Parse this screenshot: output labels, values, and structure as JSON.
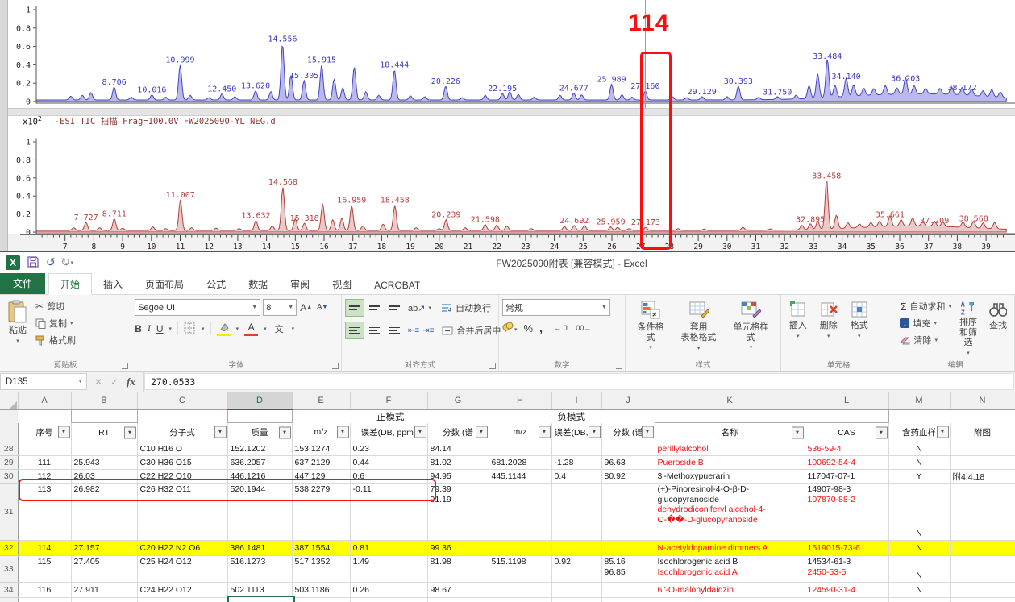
{
  "chart": {
    "scale_label": "x10",
    "scale_exp": "2",
    "panel2_title": "-ESI TIC 扫描 Frag=100.0V FW2025090-YL NEG.d",
    "annotation_label": "114",
    "y_ticks": [
      "1",
      "0.8",
      "0.6",
      "0.4",
      "0.2",
      "0"
    ],
    "x_ticks": [
      7,
      8,
      9,
      10,
      11,
      12,
      13,
      14,
      15,
      16,
      17,
      18,
      19,
      20,
      21,
      22,
      23,
      24,
      25,
      26,
      27,
      28,
      29,
      30,
      31,
      32,
      33,
      34,
      35,
      36,
      37,
      38,
      39
    ]
  },
  "chart_data": [
    {
      "type": "area",
      "name": "TIC trace upper (blue)",
      "xlabel": "acquisition time (min)",
      "xlim": [
        6,
        39.7
      ],
      "ylim": [
        0,
        1.05
      ],
      "labeled_peaks": [
        {
          "rt": 8.706,
          "h": 0.14,
          "label": "8.706"
        },
        {
          "rt": 10.016,
          "h": 0.055,
          "label": "10.016"
        },
        {
          "rt": 10.999,
          "h": 0.38,
          "label": "10.999"
        },
        {
          "rt": 12.45,
          "h": 0.065,
          "label": "12.450"
        },
        {
          "rt": 13.62,
          "h": 0.1,
          "label": "13.620"
        },
        {
          "rt": 14.556,
          "h": 0.61,
          "label": "14.556"
        },
        {
          "rt": 15.305,
          "h": 0.21,
          "label": "15.305"
        },
        {
          "rt": 15.915,
          "h": 0.38,
          "label": "15.915"
        },
        {
          "rt": 18.444,
          "h": 0.33,
          "label": "18.444"
        },
        {
          "rt": 20.226,
          "h": 0.15,
          "label": "20.226"
        },
        {
          "rt": 22.195,
          "h": 0.07,
          "label": "22.195"
        },
        {
          "rt": 24.677,
          "h": 0.075,
          "label": "24.677"
        },
        {
          "rt": 25.989,
          "h": 0.17,
          "label": "25.989"
        },
        {
          "rt": 27.16,
          "h": 0.095,
          "label": "27.160"
        },
        {
          "rt": 29.129,
          "h": 0.035,
          "label": "29.129"
        },
        {
          "rt": 30.393,
          "h": 0.15,
          "label": "30.393"
        },
        {
          "rt": 31.75,
          "h": 0.03,
          "label": "31.750"
        },
        {
          "rt": 33.484,
          "h": 0.42,
          "label": "33.484"
        },
        {
          "rt": 34.14,
          "h": 0.2,
          "label": "34.140"
        },
        {
          "rt": 36.203,
          "h": 0.18,
          "label": "36.203"
        },
        {
          "rt": 38.172,
          "h": 0.08,
          "label": "38.172"
        }
      ],
      "minor_peaks": [
        [
          7.2,
          0.04
        ],
        [
          7.6,
          0.05
        ],
        [
          7.9,
          0.08
        ],
        [
          9.3,
          0.03
        ],
        [
          10.5,
          0.03
        ],
        [
          11.35,
          0.05
        ],
        [
          12.0,
          0.025
        ],
        [
          12.9,
          0.035
        ],
        [
          14.15,
          0.09
        ],
        [
          14.85,
          0.27
        ],
        [
          16.35,
          0.23
        ],
        [
          16.65,
          0.13
        ],
        [
          17.05,
          0.36
        ],
        [
          17.45,
          0.09
        ],
        [
          17.9,
          0.05
        ],
        [
          19.0,
          0.045
        ],
        [
          19.5,
          0.035
        ],
        [
          20.8,
          0.025
        ],
        [
          21.6,
          0.05
        ],
        [
          22.45,
          0.09
        ],
        [
          22.75,
          0.06
        ],
        [
          23.3,
          0.03
        ],
        [
          24.2,
          0.05
        ],
        [
          24.95,
          0.055
        ],
        [
          26.35,
          0.055
        ],
        [
          26.7,
          0.03
        ],
        [
          28.1,
          0.035
        ],
        [
          28.6,
          0.025
        ],
        [
          30.0,
          0.035
        ],
        [
          31.1,
          0.025
        ],
        [
          32.4,
          0.04
        ],
        [
          32.85,
          0.14
        ],
        [
          33.15,
          0.26
        ],
        [
          33.75,
          0.13
        ],
        [
          34.4,
          0.12
        ],
        [
          34.75,
          0.08
        ],
        [
          35.1,
          0.07
        ],
        [
          35.5,
          0.1
        ],
        [
          35.9,
          0.07
        ],
        [
          36.5,
          0.09
        ],
        [
          36.9,
          0.06
        ],
        [
          37.4,
          0.06
        ],
        [
          37.8,
          0.08
        ],
        [
          38.5,
          0.07
        ],
        [
          38.9,
          0.06
        ],
        [
          39.2,
          0.08
        ],
        [
          39.5,
          0.06
        ],
        [
          35.5,
          0.05,
          2.5
        ],
        [
          38.0,
          0.04,
          2.0
        ]
      ]
    },
    {
      "type": "area",
      "name": "TIC trace lower (red)",
      "title": "-ESI TIC 扫描 Frag=100.0V FW2025090-YL NEG.d",
      "xlim": [
        6,
        39.7
      ],
      "ylim": [
        0,
        1.05
      ],
      "labeled_peaks": [
        {
          "rt": 7.727,
          "h": 0.09,
          "label": "7.727"
        },
        {
          "rt": 8.711,
          "h": 0.13,
          "label": "8.711"
        },
        {
          "rt": 11.007,
          "h": 0.34,
          "label": "11.007"
        },
        {
          "rt": 13.632,
          "h": 0.11,
          "label": "13.632"
        },
        {
          "rt": 14.568,
          "h": 0.48,
          "label": "14.568"
        },
        {
          "rt": 15.318,
          "h": 0.08,
          "label": "15.318"
        },
        {
          "rt": 16.959,
          "h": 0.28,
          "label": "16.959"
        },
        {
          "rt": 18.458,
          "h": 0.28,
          "label": "18.458"
        },
        {
          "rt": 20.239,
          "h": 0.12,
          "label": "20.239"
        },
        {
          "rt": 21.598,
          "h": 0.065,
          "label": "21.598"
        },
        {
          "rt": 24.692,
          "h": 0.055,
          "label": "24.692"
        },
        {
          "rt": 25.959,
          "h": 0.04,
          "label": "25.959"
        },
        {
          "rt": 27.173,
          "h": 0.035,
          "label": "27.173"
        },
        {
          "rt": 32.895,
          "h": 0.065,
          "label": "32.895"
        },
        {
          "rt": 33.458,
          "h": 0.55,
          "label": "33.458"
        },
        {
          "rt": 35.661,
          "h": 0.12,
          "label": "35.661"
        },
        {
          "rt": 37.209,
          "h": 0.055,
          "label": "37.209"
        },
        {
          "rt": 38.568,
          "h": 0.075,
          "label": "38.568"
        }
      ],
      "minor_peaks": [
        [
          7.3,
          0.03
        ],
        [
          8.2,
          0.03
        ],
        [
          9.0,
          0.025
        ],
        [
          10.05,
          0.04
        ],
        [
          10.5,
          0.02
        ],
        [
          11.4,
          0.03
        ],
        [
          12.25,
          0.025
        ],
        [
          13.05,
          0.02
        ],
        [
          14.2,
          0.05
        ],
        [
          15.0,
          0.13
        ],
        [
          15.95,
          0.3
        ],
        [
          16.3,
          0.12
        ],
        [
          16.62,
          0.14
        ],
        [
          17.35,
          0.05
        ],
        [
          18.05,
          0.07
        ],
        [
          19.2,
          0.03
        ],
        [
          20.0,
          0.02
        ],
        [
          20.9,
          0.03
        ],
        [
          22.0,
          0.06
        ],
        [
          22.35,
          0.05
        ],
        [
          23.2,
          0.02
        ],
        [
          24.35,
          0.045
        ],
        [
          25.05,
          0.055
        ],
        [
          26.2,
          0.035
        ],
        [
          26.6,
          0.02
        ],
        [
          28.3,
          0.02
        ],
        [
          29.2,
          0.015
        ],
        [
          30.55,
          0.035
        ],
        [
          31.5,
          0.015
        ],
        [
          32.6,
          0.05
        ],
        [
          33.15,
          0.09
        ],
        [
          33.8,
          0.15
        ],
        [
          34.2,
          0.06
        ],
        [
          34.6,
          0.04
        ],
        [
          35.0,
          0.05
        ],
        [
          35.3,
          0.06
        ],
        [
          36.05,
          0.07
        ],
        [
          36.45,
          0.09
        ],
        [
          36.8,
          0.05
        ],
        [
          37.5,
          0.05
        ],
        [
          38.2,
          0.06
        ],
        [
          38.9,
          0.06
        ],
        [
          39.3,
          0.07
        ],
        [
          36.5,
          0.05,
          2.8
        ]
      ]
    }
  ],
  "excel": {
    "title": "FW2025090附表  [兼容模式] - Excel",
    "tabs": {
      "file": "文件",
      "home": "开始",
      "insert": "插入",
      "layout": "页面布局",
      "formulas": "公式",
      "data": "数据",
      "review": "审阅",
      "view": "视图",
      "acrobat": "ACROBAT"
    },
    "ribbon": {
      "paste": "粘贴",
      "cut": "剪切",
      "copy": "复制",
      "format_painter": "格式刷",
      "clipboard_group": "剪贴板",
      "font_name": "Segoe UI",
      "font_size": "8",
      "bold": "B",
      "italic": "I",
      "underline": "U",
      "phonetic": "文",
      "font_group": "字体",
      "wrap": "自动换行",
      "merge": "合并后居中",
      "align_group": "对齐方式",
      "number_format": "常规",
      "percent": "%",
      "comma": ",",
      "inc_dec": "←.0",
      "dec_dec": ".00→",
      "number_group": "数字",
      "cond_fmt": "条件格式",
      "table_fmt_1": "套用",
      "table_fmt_2": "表格格式",
      "cell_styles": "单元格样式",
      "styles_group": "样式",
      "insert": "插入",
      "delete": "删除",
      "format": "格式",
      "cells_group": "单元格",
      "sigma": "Σ",
      "autosum": "自动求和",
      "fill": "填充",
      "clear": "清除",
      "sort_filter": "排序和筛选",
      "find": "查找",
      "edit_group": "编辑"
    },
    "formula_bar": {
      "name_box": "D135",
      "fx": "fx",
      "value": "270.0533"
    },
    "sheet": {
      "col_letters": [
        "A",
        "B",
        "C",
        "D",
        "E",
        "F",
        "G",
        "H",
        "I",
        "J",
        "K",
        "L",
        "M",
        "N"
      ],
      "selected_col": "D",
      "mode_pos": "正模式",
      "mode_neg": "负模式",
      "headers": [
        {
          "col": "A",
          "t": "序号",
          "filter": true
        },
        {
          "col": "B",
          "t": "RT",
          "filter": true
        },
        {
          "col": "C",
          "t": "分子式",
          "filter": true
        },
        {
          "col": "D",
          "t": "质量",
          "filter": true
        },
        {
          "col": "E",
          "t": "m/z",
          "filter": true
        },
        {
          "col": "F",
          "t": "误差(DB, ppm)",
          "filter": true
        },
        {
          "col": "G",
          "t": "分数 (谱",
          "filter": true
        },
        {
          "col": "H",
          "t": "m/z",
          "filter": true
        },
        {
          "col": "I",
          "t": "误差(DB, pp",
          "filter": true
        },
        {
          "col": "J",
          "t": "分数 (谱",
          "filter": true
        },
        {
          "col": "K",
          "t": "名称",
          "filter": true
        },
        {
          "col": "L",
          "t": "CAS",
          "filter": true
        },
        {
          "col": "M",
          "t": "含药血样",
          "filter": true
        },
        {
          "col": "N",
          "t": "附图",
          "filter": false
        }
      ],
      "rows": [
        {
          "n": "28",
          "cells": {
            "C": "C10 H16 O",
            "D": "152.1202",
            "E": "153.1274",
            "F": "0.23",
            "G": "84.14",
            "K": [
              {
                "t": "perillylalcohol",
                "red": true
              }
            ],
            "L": [
              {
                "t": "536-59-4",
                "red": true
              }
            ],
            "M": "N"
          }
        },
        {
          "n": "29",
          "cells": {
            "A": "111",
            "B": "25.943",
            "C": "C30 H36 O15",
            "D": "636.2057",
            "E": "637.2129",
            "F": "0.44",
            "G": "81.02",
            "H": "681.2028",
            "I": "-1.28",
            "J": "96.63",
            "K": [
              {
                "t": "Pueroside B",
                "red": true
              }
            ],
            "L": [
              {
                "t": "100692-54-4",
                "red": true
              }
            ],
            "M": "N"
          }
        },
        {
          "n": "30",
          "cells": {
            "A": "112",
            "B": "26.03",
            "C": "C22 H22 O10",
            "D": "446.1216",
            "E": "447.129",
            "F": "0.6",
            "G": "94.95",
            "H": "445.1144",
            "I": "0.4",
            "J": "80.92",
            "K": [
              {
                "t": "3'-Methoxypuerarin",
                "red": false
              }
            ],
            "L": [
              {
                "t": "117047-07-1",
                "red": false
              }
            ],
            "M": "Y",
            "N": "附4.4.18"
          }
        },
        {
          "n": "31",
          "vtop": true,
          "mbot": true,
          "cells": {
            "A": "113",
            "B": "26.982",
            "C": "C26 H32 O11",
            "D": "520.1944",
            "E": "538.2279",
            "F": "-0.11",
            "G": [
              {
                "t": "79.39",
                "red": false
              },
              {
                "t": "91.19",
                "red": false
              }
            ],
            "K": [
              {
                "t": "(+)-Pinoresinol-4-O-β-D-",
                "red": false
              },
              {
                "t": "glucopyranoside",
                "red": false
              },
              {
                "t": "dehydrodiconiferyl alcohol-4-",
                "red": true
              },
              {
                "t": "O-��-D-glucopyranoside",
                "red": true
              }
            ],
            "L": [
              {
                "t": "14907-98-3",
                "red": false
              },
              {
                "t": "107870-88-2",
                "red": true
              }
            ],
            "M": "N"
          }
        },
        {
          "n": "32",
          "hl": true,
          "cells": {
            "A": "114",
            "B": "27.157",
            "C": "C20 H22 N2 O6",
            "D": "386.1481",
            "E": "387.1554",
            "F": "0.81",
            "G": "99.36",
            "K": [
              {
                "t": "N-acetyldopamine dimmers A",
                "red": true
              }
            ],
            "L": [
              {
                "t": "1519015-73-6",
                "red": true
              }
            ],
            "M": "N"
          }
        },
        {
          "n": "33",
          "vtop": true,
          "mbot": true,
          "cells": {
            "A": "115",
            "B": "27.405",
            "C": "C25 H24 O12",
            "D": "516.1273",
            "E": "517.1352",
            "F": "1.49",
            "G": "81.98",
            "H": "515.1198",
            "I": "0.92",
            "J": [
              {
                "t": "85.16",
                "red": false
              },
              {
                "t": "96.85",
                "red": false
              }
            ],
            "K": [
              {
                "t": "Isochlorogenic acid B",
                "red": false
              },
              {
                "t": "Isochlorogenic acid A",
                "red": true
              }
            ],
            "L": [
              {
                "t": "14534-61-3",
                "red": false
              },
              {
                "t": "2450-53-5",
                "red": true
              }
            ],
            "M": "N"
          }
        },
        {
          "n": "34",
          "cells": {
            "A": "116",
            "B": "27.911",
            "C": "C24 H22 O12",
            "D": "502.1113",
            "E": "503.1186",
            "F": "0.26",
            "G": "98.67",
            "K": [
              {
                "t": "6''-O-malonyldaidzin",
                "red": true
              }
            ],
            "L": [
              {
                "t": "124590-31-4",
                "red": true
              }
            ],
            "M": "N"
          }
        }
      ]
    }
  }
}
